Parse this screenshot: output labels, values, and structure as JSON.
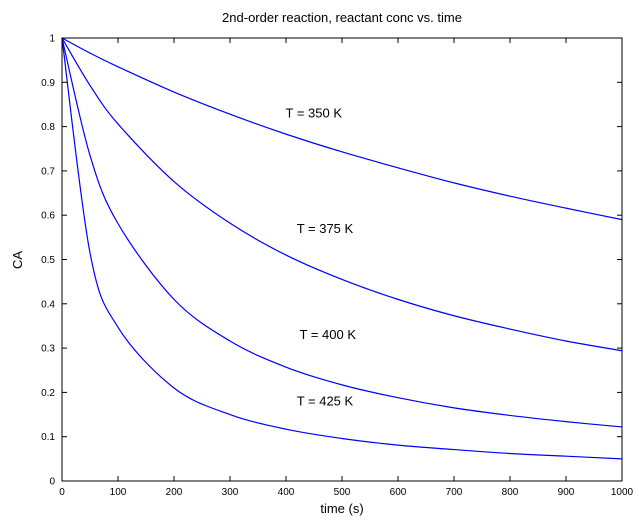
{
  "chart_data": {
    "type": "line",
    "title": "2nd-order reaction, reactant conc vs. time",
    "xlabel": "time (s)",
    "ylabel": "CA",
    "xlim": [
      0,
      1000
    ],
    "ylim": [
      0,
      1
    ],
    "x_ticks": [
      "0",
      "100",
      "200",
      "300",
      "400",
      "500",
      "600",
      "700",
      "800",
      "900",
      "1000"
    ],
    "y_ticks": [
      "0",
      "0.1",
      "0.2",
      "0.3",
      "0.4",
      "0.5",
      "0.6",
      "0.7",
      "0.8",
      "0.9",
      "1"
    ],
    "grid": false,
    "line_color": "#0000ff",
    "x": [
      0,
      50,
      100,
      200,
      300,
      400,
      500,
      600,
      700,
      800,
      900,
      1000
    ],
    "series": [
      {
        "name": "T = 350 K",
        "values": [
          1.0,
          0.966,
          0.935,
          0.878,
          0.828,
          0.783,
          0.743,
          0.707,
          0.673,
          0.643,
          0.616,
          0.59
        ]
      },
      {
        "name": "T = 375 K",
        "values": [
          1.0,
          0.893,
          0.806,
          0.676,
          0.582,
          0.51,
          0.455,
          0.41,
          0.373,
          0.343,
          0.316,
          0.294
        ]
      },
      {
        "name": "T = 400 K",
        "values": [
          1.0,
          0.735,
          0.581,
          0.41,
          0.316,
          0.257,
          0.217,
          0.188,
          0.165,
          0.148,
          0.134,
          0.122
        ]
      },
      {
        "name": "T = 425 K",
        "values": [
          1.0,
          0.515,
          0.347,
          0.21,
          0.15,
          0.117,
          0.096,
          0.081,
          0.071,
          0.062,
          0.056,
          0.05
        ]
      }
    ],
    "series_label_anchor": [
      {
        "x": 500,
        "y": 0.82
      },
      {
        "x": 520,
        "y": 0.56
      },
      {
        "x": 525,
        "y": 0.32
      },
      {
        "x": 520,
        "y": 0.17
      }
    ]
  }
}
